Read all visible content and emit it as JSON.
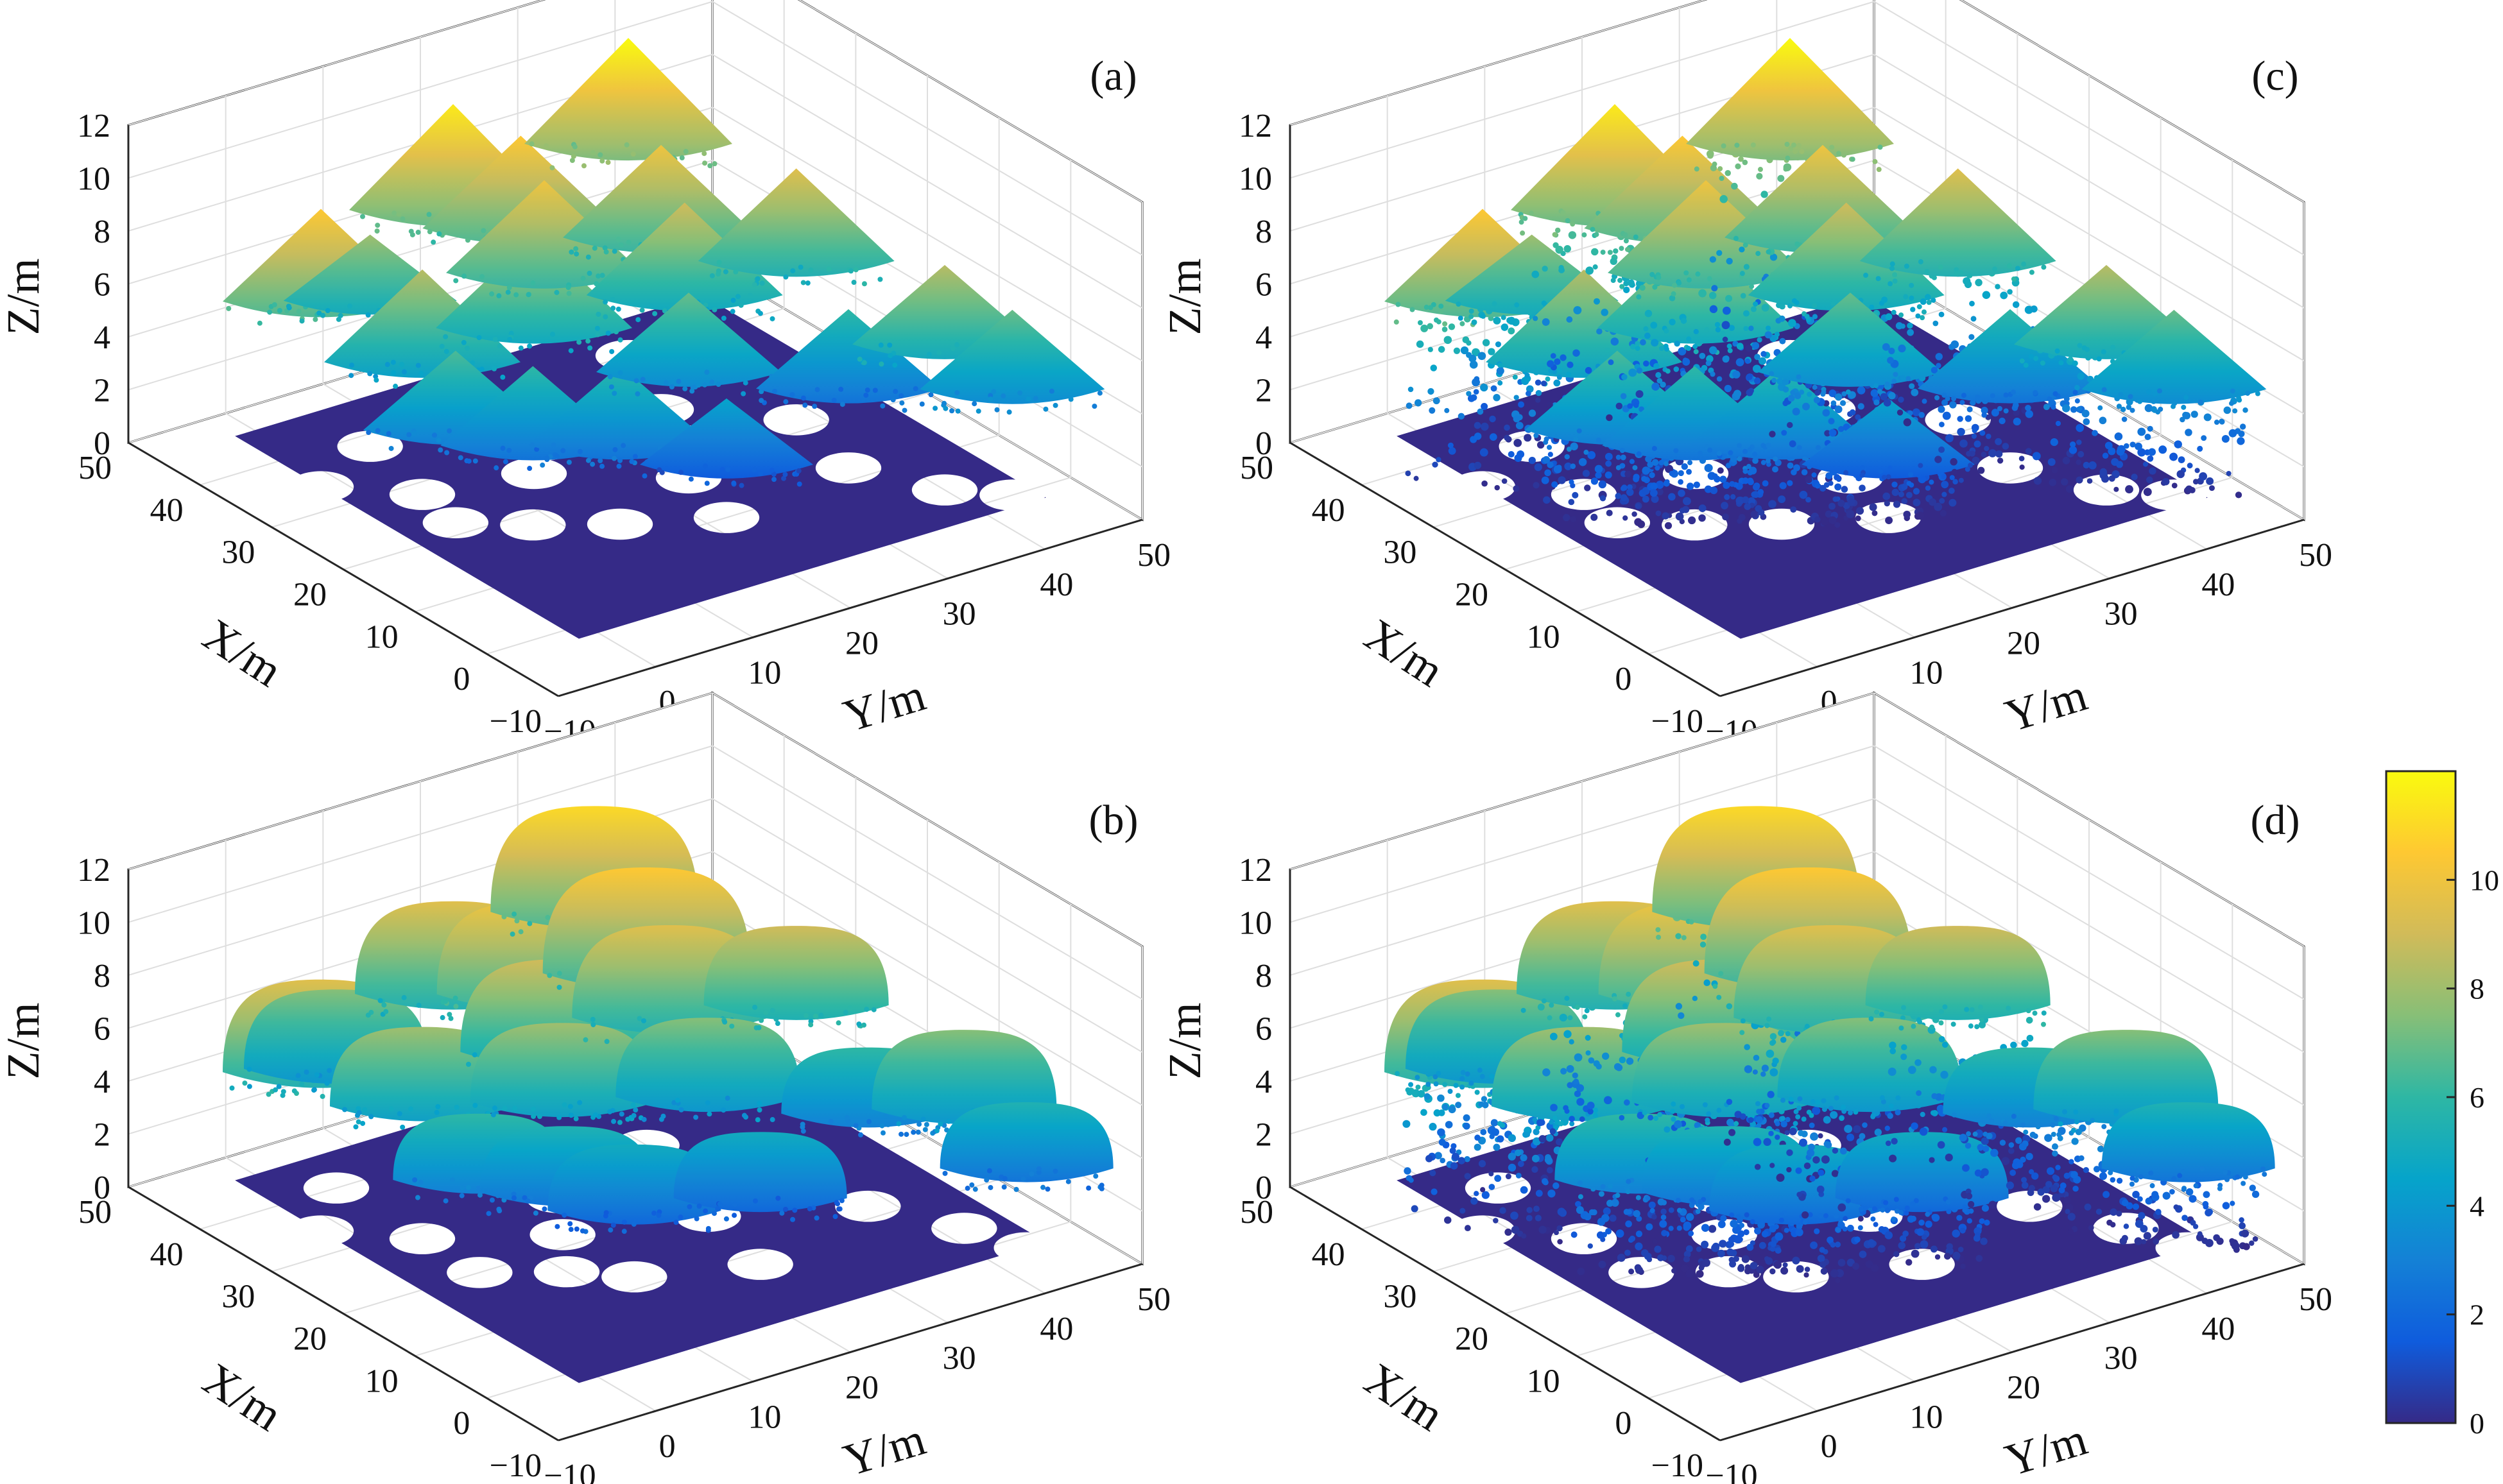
{
  "figure": {
    "description_free": true
  },
  "chart_data": [
    {
      "type": "scatter3d",
      "panel_label": "(a)",
      "tree_shape": "cone",
      "understory": false,
      "xlabel": "X/m",
      "ylabel": "Y/m",
      "zlabel": "Z/m",
      "xlim": [
        -10,
        50
      ],
      "ylim": [
        -10,
        50
      ],
      "zlim": [
        0,
        12
      ],
      "xticks": [
        "-10",
        "0",
        "10",
        "20",
        "30",
        "40",
        "50"
      ],
      "yticks": [
        "-10",
        "0",
        "10",
        "20",
        "30",
        "40",
        "50"
      ],
      "zticks": [
        "0",
        "2",
        "4",
        "6",
        "8",
        "10",
        "12"
      ],
      "ground_z": 0,
      "trees": [
        {
          "x": 34,
          "y": -2,
          "height": 10.5,
          "crown_base": 7.0
        },
        {
          "x": 38,
          "y": 6,
          "height": 8.0,
          "crown_base": 5.5
        },
        {
          "x": 28,
          "y": 4,
          "height": 8.5,
          "crown_base": 5.0
        },
        {
          "x": 22,
          "y": 3,
          "height": 6.5,
          "crown_base": 3.5
        },
        {
          "x": 18,
          "y": 8,
          "height": 6.0,
          "crown_base": 3.0
        },
        {
          "x": 40,
          "y": 16,
          "height": 11.5,
          "crown_base": 7.5
        },
        {
          "x": 36,
          "y": 20,
          "height": 10.5,
          "crown_base": 7.0
        },
        {
          "x": 30,
          "y": 18,
          "height": 10.0,
          "crown_base": 6.5
        },
        {
          "x": 26,
          "y": 14,
          "height": 9.0,
          "crown_base": 5.5
        },
        {
          "x": 14,
          "y": 14,
          "height": 6.0,
          "crown_base": 3.0
        },
        {
          "x": 40,
          "y": 34,
          "height": 12.0,
          "crown_base": 8.0
        },
        {
          "x": 30,
          "y": 30,
          "height": 10.0,
          "crown_base": 6.5
        },
        {
          "x": 24,
          "y": 28,
          "height": 9.0,
          "crown_base": 5.5
        },
        {
          "x": 18,
          "y": 24,
          "height": 7.0,
          "crown_base": 4.0
        },
        {
          "x": 10,
          "y": 22,
          "height": 4.5,
          "crown_base": 2.0
        },
        {
          "x": 22,
          "y": 38,
          "height": 9.5,
          "crown_base": 6.0
        },
        {
          "x": 12,
          "y": 36,
          "height": 6.0,
          "crown_base": 3.0
        },
        {
          "x": 4,
          "y": 40,
          "height": 8.5,
          "crown_base": 5.5
        },
        {
          "x": 0,
          "y": 44,
          "height": 7.0,
          "crown_base": 4.0
        }
      ]
    },
    {
      "type": "scatter3d",
      "panel_label": "(b)",
      "tree_shape": "dome",
      "understory": false,
      "xlabel": "X/m",
      "ylabel": "Y/m",
      "zlabel": "Z/m",
      "xlim": [
        -10,
        50
      ],
      "ylim": [
        -10,
        50
      ],
      "zlim": [
        0,
        12
      ],
      "xticks": [
        "-10",
        "0",
        "10",
        "20",
        "30",
        "40",
        "50"
      ],
      "yticks": [
        "-10",
        "0",
        "10",
        "20",
        "30",
        "40",
        "50"
      ],
      "zticks": [
        "0",
        "2",
        "4",
        "6",
        "8",
        "10",
        "12"
      ],
      "ground_z": 0,
      "trees": [
        {
          "x": 34,
          "y": -2,
          "height": 9.5,
          "crown_base": 6.0
        },
        {
          "x": 40,
          "y": 4,
          "height": 7.5,
          "crown_base": 4.5
        },
        {
          "x": 28,
          "y": 4,
          "height": 8.0,
          "crown_base": 5.0
        },
        {
          "x": 20,
          "y": 4,
          "height": 6.0,
          "crown_base": 3.5
        },
        {
          "x": 16,
          "y": 10,
          "height": 5.5,
          "crown_base": 3.0
        },
        {
          "x": 40,
          "y": 16,
          "height": 9.5,
          "crown_base": 6.0
        },
        {
          "x": 34,
          "y": 20,
          "height": 10.0,
          "crown_base": 6.5
        },
        {
          "x": 28,
          "y": 18,
          "height": 9.0,
          "crown_base": 5.5
        },
        {
          "x": 22,
          "y": 14,
          "height": 8.0,
          "crown_base": 5.0
        },
        {
          "x": 12,
          "y": 14,
          "height": 5.0,
          "crown_base": 2.5
        },
        {
          "x": 42,
          "y": 32,
          "height": 11.0,
          "crown_base": 7.0
        },
        {
          "x": 32,
          "y": 30,
          "height": 10.5,
          "crown_base": 6.5
        },
        {
          "x": 26,
          "y": 28,
          "height": 9.5,
          "crown_base": 6.0
        },
        {
          "x": 18,
          "y": 26,
          "height": 7.5,
          "crown_base": 4.5
        },
        {
          "x": 8,
          "y": 24,
          "height": 5.0,
          "crown_base": 2.5
        },
        {
          "x": 22,
          "y": 38,
          "height": 9.0,
          "crown_base": 6.0
        },
        {
          "x": 12,
          "y": 38,
          "height": 6.0,
          "crown_base": 3.5
        },
        {
          "x": 4,
          "y": 42,
          "height": 7.5,
          "crown_base": 4.5
        },
        {
          "x": -2,
          "y": 44,
          "height": 5.5,
          "crown_base": 3.0
        }
      ]
    },
    {
      "type": "scatter3d",
      "panel_label": "(c)",
      "tree_shape": "cone",
      "understory": true,
      "xlabel": "X/m",
      "ylabel": "Y/m",
      "zlabel": "Z/m",
      "xlim": [
        -10,
        50
      ],
      "ylim": [
        -10,
        50
      ],
      "zlim": [
        0,
        12
      ],
      "xticks": [
        "-10",
        "0",
        "10",
        "20",
        "30",
        "40",
        "50"
      ],
      "yticks": [
        "-10",
        "0",
        "10",
        "20",
        "30",
        "40",
        "50"
      ],
      "zticks": [
        "0",
        "2",
        "4",
        "6",
        "8",
        "10",
        "12"
      ],
      "ground_z": 0,
      "trees": [
        {
          "x": 34,
          "y": -2,
          "height": 10.5,
          "crown_base": 7.0
        },
        {
          "x": 38,
          "y": 6,
          "height": 8.0,
          "crown_base": 5.5
        },
        {
          "x": 28,
          "y": 4,
          "height": 8.5,
          "crown_base": 5.0
        },
        {
          "x": 22,
          "y": 3,
          "height": 6.5,
          "crown_base": 3.5
        },
        {
          "x": 18,
          "y": 8,
          "height": 6.0,
          "crown_base": 3.0
        },
        {
          "x": 40,
          "y": 16,
          "height": 11.5,
          "crown_base": 7.5
        },
        {
          "x": 36,
          "y": 20,
          "height": 10.5,
          "crown_base": 7.0
        },
        {
          "x": 30,
          "y": 18,
          "height": 10.0,
          "crown_base": 6.5
        },
        {
          "x": 26,
          "y": 14,
          "height": 9.0,
          "crown_base": 5.5
        },
        {
          "x": 14,
          "y": 14,
          "height": 6.0,
          "crown_base": 3.0
        },
        {
          "x": 40,
          "y": 34,
          "height": 12.0,
          "crown_base": 8.0
        },
        {
          "x": 30,
          "y": 30,
          "height": 10.0,
          "crown_base": 6.5
        },
        {
          "x": 24,
          "y": 28,
          "height": 9.0,
          "crown_base": 5.5
        },
        {
          "x": 18,
          "y": 24,
          "height": 7.0,
          "crown_base": 4.0
        },
        {
          "x": 10,
          "y": 22,
          "height": 4.5,
          "crown_base": 2.0
        },
        {
          "x": 22,
          "y": 38,
          "height": 9.5,
          "crown_base": 6.0
        },
        {
          "x": 12,
          "y": 36,
          "height": 6.0,
          "crown_base": 3.0
        },
        {
          "x": 4,
          "y": 40,
          "height": 8.5,
          "crown_base": 5.5
        },
        {
          "x": 0,
          "y": 44,
          "height": 7.0,
          "crown_base": 4.0
        }
      ]
    },
    {
      "type": "scatter3d",
      "panel_label": "(d)",
      "tree_shape": "dome",
      "understory": true,
      "xlabel": "X/m",
      "ylabel": "Y/m",
      "zlabel": "Z/m",
      "xlim": [
        -10,
        50
      ],
      "ylim": [
        -10,
        50
      ],
      "zlim": [
        0,
        12
      ],
      "xticks": [
        "-10",
        "0",
        "10",
        "20",
        "30",
        "40",
        "50"
      ],
      "yticks": [
        "-10",
        "0",
        "10",
        "20",
        "30",
        "40",
        "50"
      ],
      "zticks": [
        "0",
        "2",
        "4",
        "6",
        "8",
        "10",
        "12"
      ],
      "ground_z": 0,
      "trees": [
        {
          "x": 34,
          "y": -2,
          "height": 9.5,
          "crown_base": 6.0
        },
        {
          "x": 40,
          "y": 4,
          "height": 7.5,
          "crown_base": 4.5
        },
        {
          "x": 28,
          "y": 4,
          "height": 8.0,
          "crown_base": 5.0
        },
        {
          "x": 20,
          "y": 4,
          "height": 6.0,
          "crown_base": 3.5
        },
        {
          "x": 16,
          "y": 10,
          "height": 5.5,
          "crown_base": 3.0
        },
        {
          "x": 40,
          "y": 16,
          "height": 9.5,
          "crown_base": 6.0
        },
        {
          "x": 34,
          "y": 20,
          "height": 10.0,
          "crown_base": 6.5
        },
        {
          "x": 28,
          "y": 18,
          "height": 9.0,
          "crown_base": 5.5
        },
        {
          "x": 22,
          "y": 14,
          "height": 8.0,
          "crown_base": 5.0
        },
        {
          "x": 12,
          "y": 14,
          "height": 5.0,
          "crown_base": 2.5
        },
        {
          "x": 42,
          "y": 32,
          "height": 11.0,
          "crown_base": 7.0
        },
        {
          "x": 32,
          "y": 30,
          "height": 10.5,
          "crown_base": 6.5
        },
        {
          "x": 26,
          "y": 28,
          "height": 9.5,
          "crown_base": 6.0
        },
        {
          "x": 18,
          "y": 26,
          "height": 7.5,
          "crown_base": 4.5
        },
        {
          "x": 8,
          "y": 24,
          "height": 5.0,
          "crown_base": 2.5
        },
        {
          "x": 22,
          "y": 38,
          "height": 9.0,
          "crown_base": 6.0
        },
        {
          "x": 12,
          "y": 38,
          "height": 6.0,
          "crown_base": 3.5
        },
        {
          "x": 4,
          "y": 42,
          "height": 7.5,
          "crown_base": 4.5
        },
        {
          "x": -2,
          "y": 44,
          "height": 5.5,
          "crown_base": 3.0
        }
      ]
    }
  ],
  "colorbar": {
    "colormap": "parula",
    "range": [
      0,
      12
    ],
    "ticks": [
      "0",
      "2",
      "4",
      "6",
      "8",
      "10"
    ],
    "ground_color": "#352a87",
    "stops": [
      "#352a87",
      "#0f5cdd",
      "#1481d6",
      "#06a4ca",
      "#2eb7a4",
      "#87bf77",
      "#d1bb59",
      "#fec832",
      "#f9fb0e"
    ]
  }
}
